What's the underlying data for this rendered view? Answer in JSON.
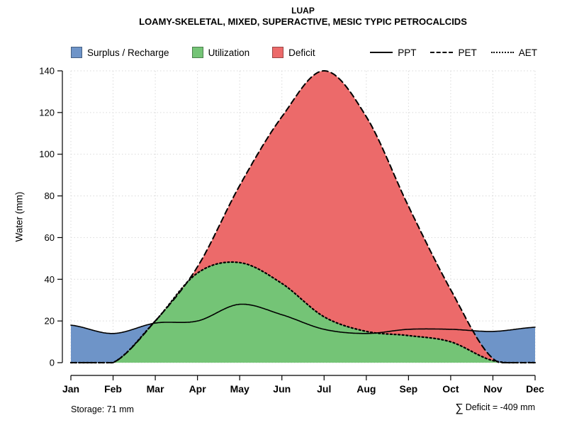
{
  "title": "LUAP",
  "subtitle": "LOAMY-SKELETAL, MIXED, SUPERACTIVE, MESIC TYPIC PETROCALCIDS",
  "legend": {
    "items": [
      {
        "label": "Surplus / Recharge",
        "swatch": "fill",
        "color": "#6e94c8"
      },
      {
        "label": "Utilization",
        "swatch": "fill",
        "color": "#74c476"
      },
      {
        "label": "Deficit",
        "swatch": "fill",
        "color": "#ec6a6a"
      },
      {
        "label": "PPT",
        "swatch": "line-solid"
      },
      {
        "label": "PET",
        "swatch": "line-dashed"
      },
      {
        "label": "AET",
        "swatch": "line-dotted"
      }
    ]
  },
  "footer": {
    "storage": "Storage: 71 mm",
    "deficit_sigma": "∑",
    "deficit_text": "Deficit = -409 mm"
  },
  "chart_data": {
    "type": "line",
    "title": "LUAP",
    "subtitle": "LOAMY-SKELETAL, MIXED, SUPERACTIVE, MESIC TYPIC PETROCALCIDS",
    "x": [
      "Jan",
      "Feb",
      "Mar",
      "Apr",
      "May",
      "Jun",
      "Jul",
      "Aug",
      "Sep",
      "Oct",
      "Nov",
      "Dec"
    ],
    "xlabel": "",
    "ylabel": "Water (mm)",
    "ylim": [
      0,
      140
    ],
    "yticks": [
      0,
      20,
      40,
      60,
      80,
      100,
      120,
      140
    ],
    "grid": true,
    "grid_style": "dotted",
    "grid_color": "#d9d9d9",
    "legend_position": "top",
    "line_color": "#000000",
    "series": [
      {
        "name": "PPT",
        "style": "solid",
        "values": [
          18,
          14,
          19,
          20,
          28,
          23,
          16,
          14,
          16,
          16,
          15,
          17
        ]
      },
      {
        "name": "PET",
        "style": "dashed",
        "values": [
          0,
          0,
          20,
          46,
          85,
          118,
          140,
          118,
          75,
          35,
          2,
          0
        ]
      },
      {
        "name": "AET",
        "style": "dotted",
        "values": [
          0,
          0,
          20,
          43,
          48,
          38,
          22,
          15,
          13,
          10,
          1,
          0
        ]
      }
    ],
    "areas": [
      {
        "name": "Surplus / Recharge",
        "color": "#6e94c8",
        "between": [
          "PET",
          "PPT"
        ],
        "where": "PPT > PET"
      },
      {
        "name": "Utilization",
        "color": "#74c476",
        "between": [
          "zero",
          "AET"
        ]
      },
      {
        "name": "Deficit",
        "color": "#ec6a6a",
        "between": [
          "AET",
          "PET"
        ]
      }
    ],
    "annotations": {
      "storage_mm": 71,
      "sum_deficit_mm": -409
    }
  }
}
